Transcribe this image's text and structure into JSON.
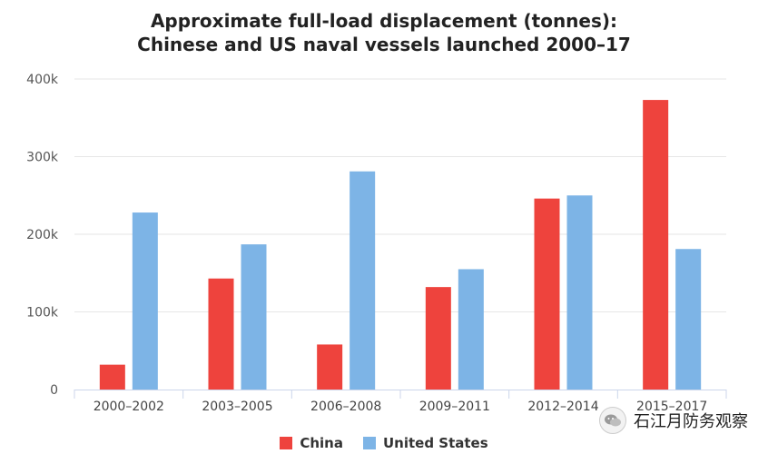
{
  "chart_data": {
    "type": "bar",
    "title_line1": "Approximate full-load displacement (tonnes):",
    "title_line2": "Chinese and US naval vessels launched 2000–17",
    "categories": [
      "2000–2002",
      "2003–2005",
      "2006–2008",
      "2009–2011",
      "2012–2014",
      "2015–2017"
    ],
    "series": [
      {
        "name": "China",
        "color": "#ee433d",
        "values": [
          32000,
          143000,
          58000,
          132000,
          246000,
          373000
        ]
      },
      {
        "name": "United States",
        "color": "#7db4e6",
        "values": [
          228000,
          187000,
          281000,
          155000,
          250000,
          181000
        ]
      }
    ],
    "ylim": [
      0,
      400000
    ],
    "yticks": [
      {
        "value": 0,
        "label": "0"
      },
      {
        "value": 100000,
        "label": "100k"
      },
      {
        "value": 200000,
        "label": "200k"
      },
      {
        "value": 300000,
        "label": "300k"
      },
      {
        "value": 400000,
        "label": "400k"
      }
    ],
    "grid": true,
    "legend_position": "bottom-center"
  },
  "watermark": {
    "text": "石江月防务观察"
  }
}
